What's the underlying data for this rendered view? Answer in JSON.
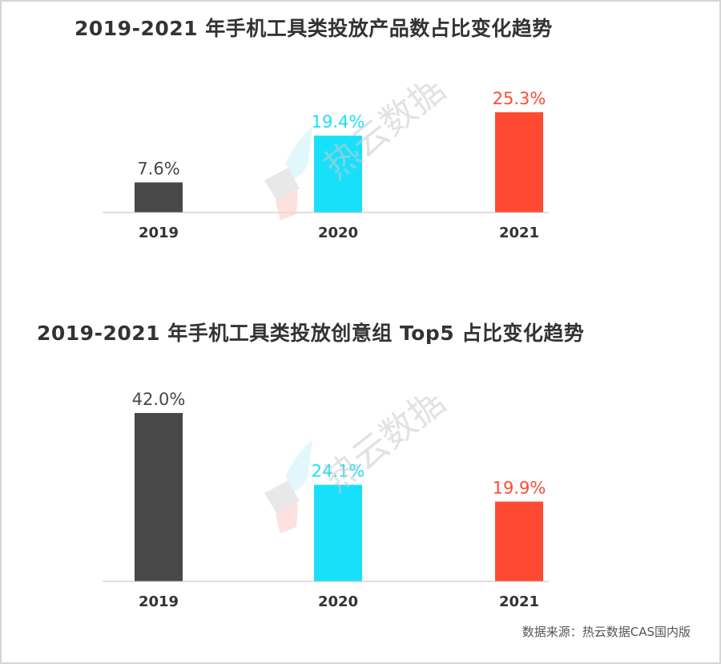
{
  "source_label": "数据来源：热云数据CAS国内版",
  "watermark_text": "热云数据",
  "colors": {
    "dark": "#484848",
    "cyan": "#19e0fa",
    "red": "#ff4a32",
    "axis": "#bfbfbf",
    "tick_text": "#333333"
  },
  "chart_data": [
    {
      "type": "bar",
      "title": "2019-2021 年手机工具类投放产品数占比变化趋势",
      "categories": [
        "2019",
        "2020",
        "2021"
      ],
      "values": [
        7.6,
        19.4,
        25.3
      ],
      "value_labels": [
        "7.6%",
        "19.4%",
        "25.3%"
      ],
      "bar_colors": [
        "#484848",
        "#19e0fa",
        "#ff4a32"
      ],
      "ylim": [
        0,
        25.3
      ],
      "grid": false
    },
    {
      "type": "bar",
      "title": "2019-2021 年手机工具类投放创意组 Top5 占比变化趋势",
      "categories": [
        "2019",
        "2020",
        "2021"
      ],
      "values": [
        42.0,
        24.1,
        19.9
      ],
      "value_labels": [
        "42.0%",
        "24.1%",
        "19.9%"
      ],
      "bar_colors": [
        "#484848",
        "#19e0fa",
        "#ff4a32"
      ],
      "ylim": [
        0,
        42.0
      ],
      "grid": false
    }
  ]
}
